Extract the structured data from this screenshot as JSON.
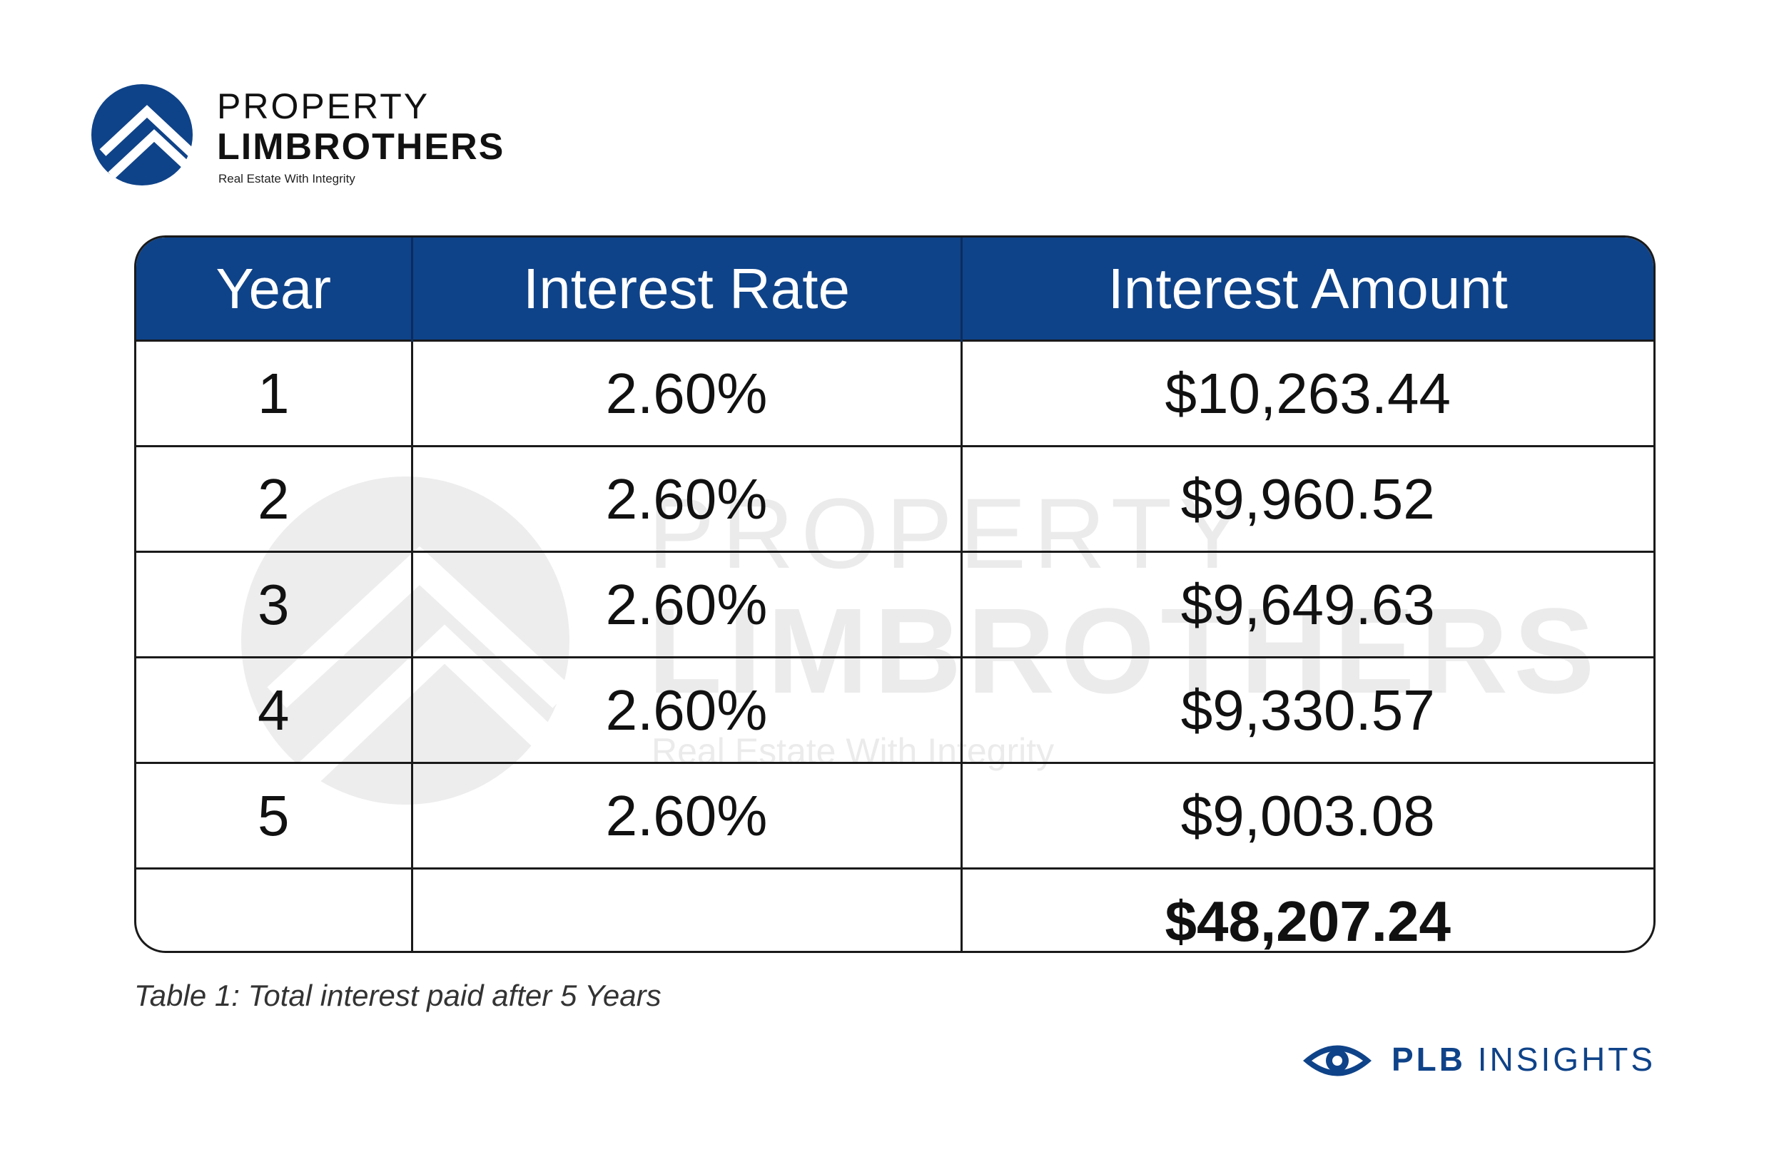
{
  "brand": {
    "top": "PROPERTY",
    "main": "LIMBROTHERS",
    "tagline": "Real Estate With Integrity",
    "color": "#0f4389"
  },
  "watermark": {
    "top": "PROPERTY",
    "main": "LIMBROTHERS",
    "tagline": "Real Estate With Integrity"
  },
  "table": {
    "headers": [
      "Year",
      "Interest Rate",
      "Interest Amount"
    ],
    "rows": [
      [
        "1",
        "2.60%",
        "$10,263.44"
      ],
      [
        "2",
        "2.60%",
        "$9,960.52"
      ],
      [
        "3",
        "2.60%",
        "$9,649.63"
      ],
      [
        "4",
        "2.60%",
        "$9,330.57"
      ],
      [
        "5",
        "2.60%",
        "$9,003.08"
      ]
    ],
    "total": [
      "",
      "",
      "$48,207.24"
    ],
    "header_color": "#0f4389"
  },
  "caption": "Table 1: Total interest paid after 5 Years",
  "insights": {
    "bold": "PLB",
    "rest": " INSIGHTS",
    "icon": "eye-icon"
  }
}
